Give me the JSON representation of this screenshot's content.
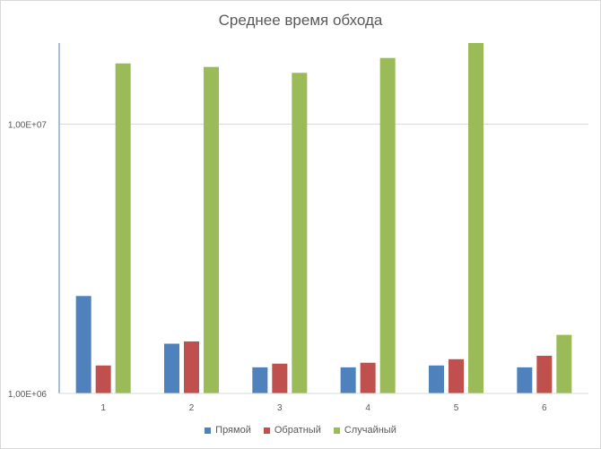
{
  "chart_data": {
    "type": "bar",
    "title": "Среднее время обхода",
    "xlabel": "",
    "ylabel": "",
    "y_scale": "log",
    "ylim": [
      1000000,
      20000000
    ],
    "y_ticks": [
      1000000,
      10000000
    ],
    "y_tick_labels": [
      "1,00E+06",
      "1,00E+07"
    ],
    "grid": true,
    "legend_position": "bottom",
    "categories": [
      "1",
      "2",
      "3",
      "4",
      "5",
      "6"
    ],
    "series": [
      {
        "name": "Прямой",
        "color": "#4f81bd",
        "values": [
          2300000,
          1530000,
          1250000,
          1250000,
          1270000,
          1250000
        ]
      },
      {
        "name": "Обратный",
        "color": "#c0504d",
        "values": [
          1270000,
          1560000,
          1290000,
          1300000,
          1340000,
          1380000
        ]
      },
      {
        "name": "Случайный",
        "color": "#9bbb59",
        "values": [
          16800000,
          16300000,
          15500000,
          17600000,
          20000000,
          1650000
        ]
      }
    ]
  }
}
